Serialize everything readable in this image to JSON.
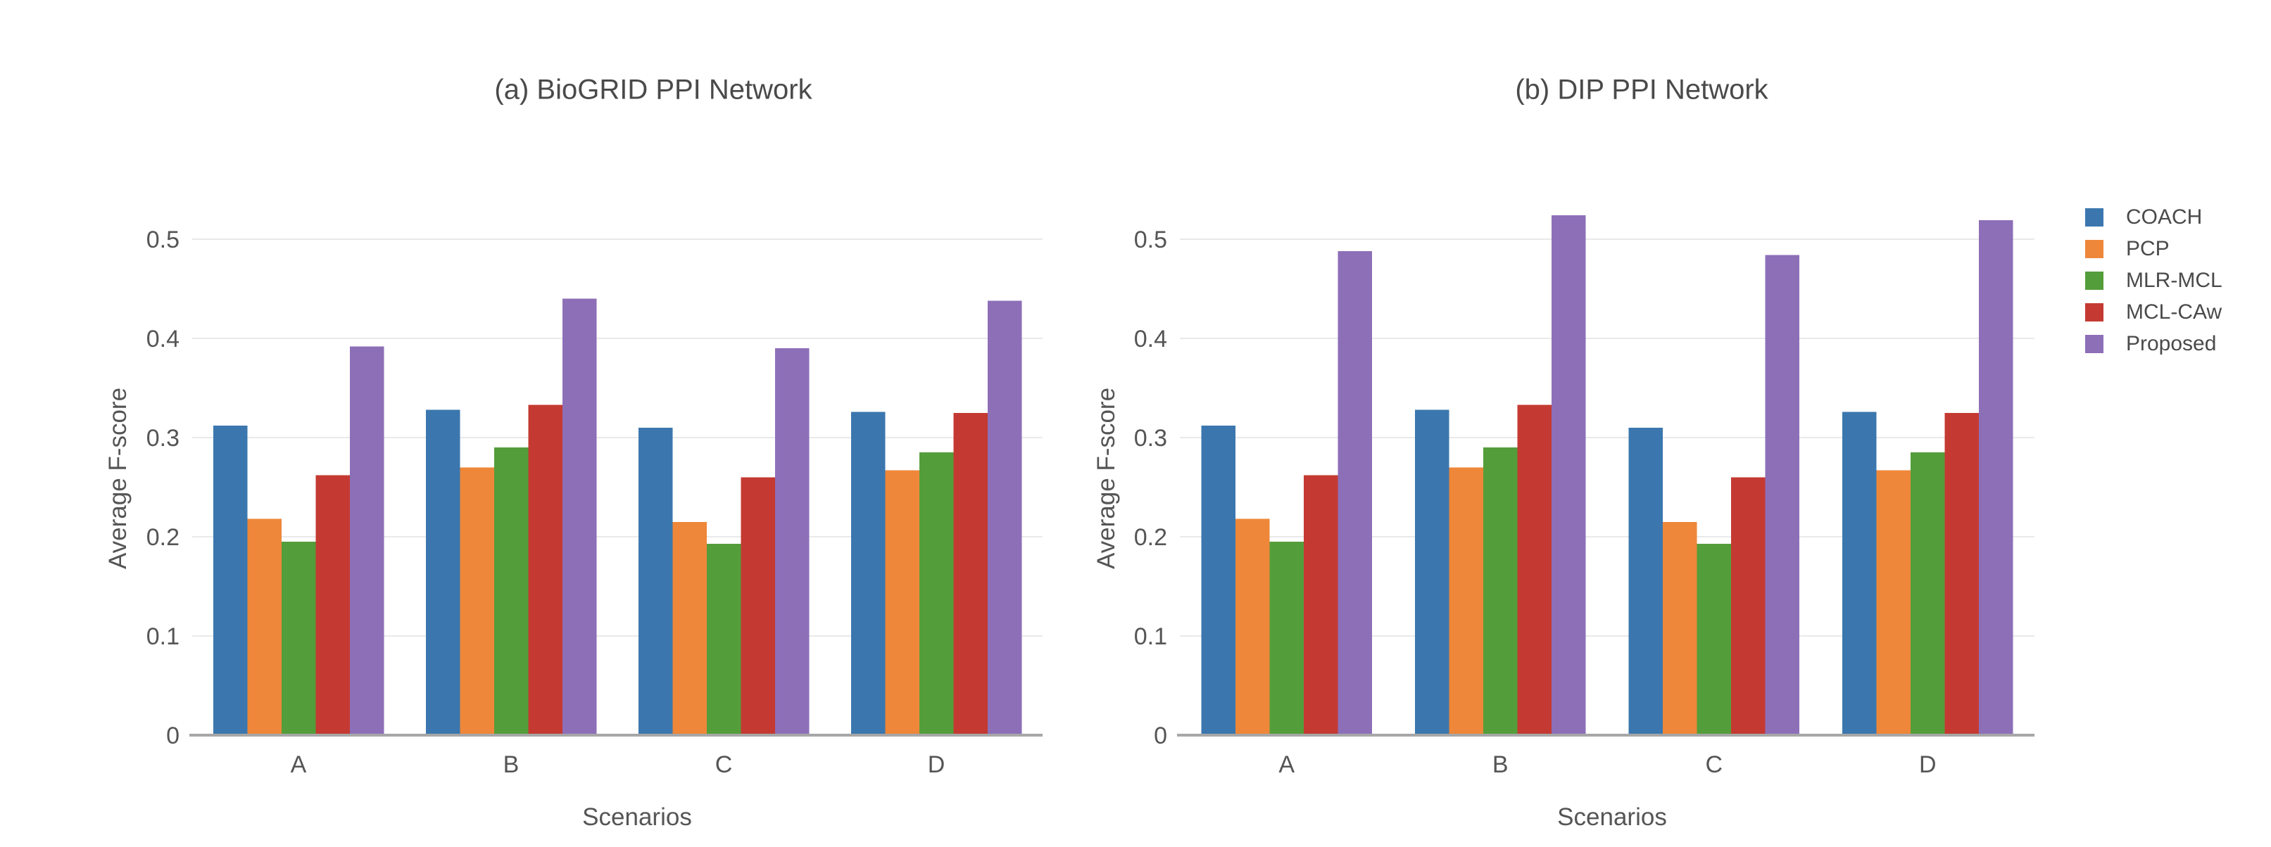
{
  "figure": {
    "background": "#ffffff",
    "title_color": "#4a4a4a",
    "axis_text_color": "#555555",
    "grid_color": "#e9e9e9",
    "baseline_color": "#a7a7a7"
  },
  "legend": {
    "items": [
      {
        "label": "COACH",
        "color": "#3b77ae"
      },
      {
        "label": "PCP",
        "color": "#ee8739"
      },
      {
        "label": "MLR-MCL",
        "color": "#549d3b"
      },
      {
        "label": "MCL-CAw",
        "color": "#c43a32"
      },
      {
        "label": "Proposed",
        "color": "#8d6fb8"
      }
    ],
    "position": "right-outside"
  },
  "chart_data": [
    {
      "type": "bar",
      "title": "(a) BioGRID PPI Network",
      "xlabel": "Scenarios",
      "ylabel": "Average F-score",
      "categories": [
        "A",
        "B",
        "C",
        "D"
      ],
      "yticks": [
        0,
        0.1,
        0.2,
        0.3,
        0.4,
        0.5
      ],
      "ylim": [
        0,
        0.55
      ],
      "grid": true,
      "series": [
        {
          "name": "COACH",
          "color": "#3b77ae",
          "values": [
            0.312,
            0.328,
            0.31,
            0.326
          ]
        },
        {
          "name": "PCP",
          "color": "#ee8739",
          "values": [
            0.218,
            0.27,
            0.215,
            0.267
          ]
        },
        {
          "name": "MLR-MCL",
          "color": "#549d3b",
          "values": [
            0.195,
            0.29,
            0.193,
            0.285
          ]
        },
        {
          "name": "MCL-CAw",
          "color": "#c43a32",
          "values": [
            0.262,
            0.333,
            0.26,
            0.325
          ]
        },
        {
          "name": "Proposed",
          "color": "#8d6fb8",
          "values": [
            0.392,
            0.44,
            0.39,
            0.438
          ]
        }
      ]
    },
    {
      "type": "bar",
      "title": "(b) DIP PPI Network",
      "xlabel": "Scenarios",
      "ylabel": "Average F-score",
      "categories": [
        "A",
        "B",
        "C",
        "D"
      ],
      "yticks": [
        0,
        0.1,
        0.2,
        0.3,
        0.4,
        0.5
      ],
      "ylim": [
        0,
        0.55
      ],
      "grid": true,
      "series": [
        {
          "name": "COACH",
          "color": "#3b77ae",
          "values": [
            0.312,
            0.328,
            0.31,
            0.326
          ]
        },
        {
          "name": "PCP",
          "color": "#ee8739",
          "values": [
            0.218,
            0.27,
            0.215,
            0.267
          ]
        },
        {
          "name": "MLR-MCL",
          "color": "#549d3b",
          "values": [
            0.195,
            0.29,
            0.193,
            0.285
          ]
        },
        {
          "name": "MCL-CAw",
          "color": "#c43a32",
          "values": [
            0.262,
            0.333,
            0.26,
            0.325
          ]
        },
        {
          "name": "Proposed",
          "color": "#8d6fb8",
          "values": [
            0.488,
            0.524,
            0.484,
            0.519
          ]
        }
      ]
    }
  ]
}
